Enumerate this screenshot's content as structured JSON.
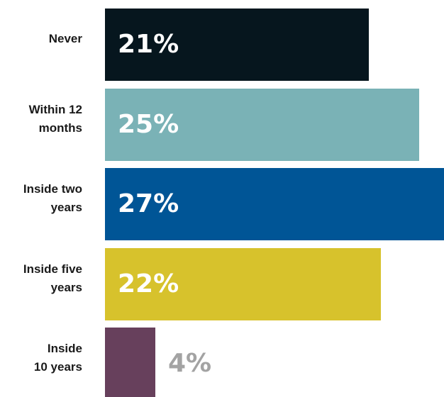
{
  "chart_data": {
    "type": "bar",
    "orientation": "horizontal",
    "categories": [
      "Never",
      "Within 12\nmonths",
      "Inside two\nyears",
      "Inside five\nyears",
      "Inside\n10 years"
    ],
    "values": [
      21,
      25,
      27,
      22,
      4
    ],
    "value_labels": [
      "21%",
      "25%",
      "27%",
      "22%",
      "4%"
    ],
    "unit": "%",
    "title": "",
    "xlabel": "",
    "ylabel": "",
    "xlim": [
      0,
      27
    ],
    "grid": false,
    "colors": [
      "#06161e",
      "#7ab2b6",
      "#005596",
      "#d7c22c",
      "#67405c"
    ],
    "label_colors": [
      "#ffffff",
      "#ffffff",
      "#ffffff",
      "#ffffff",
      "#a3a3a3"
    ]
  }
}
